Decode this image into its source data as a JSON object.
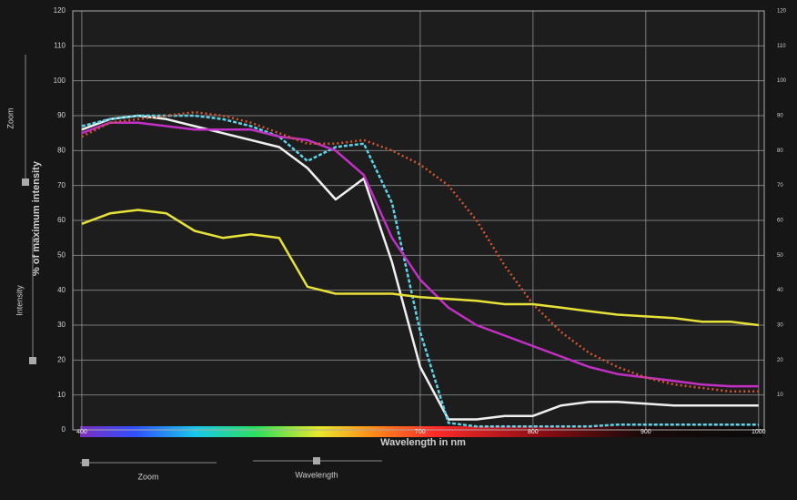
{
  "chart_data": {
    "type": "line",
    "y_label": "% of maximum intensity",
    "x_label": "Wavelength in nm",
    "x": [
      400,
      425,
      450,
      475,
      500,
      525,
      550,
      575,
      600,
      625,
      650,
      675,
      700,
      725,
      750,
      775,
      800,
      825,
      850,
      875,
      900,
      925,
      950,
      975,
      1000
    ],
    "series": [
      {
        "color": "#f0f0f0",
        "values": [
          86,
          89,
          90,
          89,
          87,
          85,
          83,
          81,
          75,
          66,
          72,
          48,
          18,
          3,
          3,
          4,
          4,
          7,
          8,
          8,
          7.5,
          7,
          7,
          7,
          7
        ]
      },
      {
        "color": "#5fd3e8",
        "values": [
          87,
          89,
          90,
          90,
          90,
          89,
          87,
          84,
          77,
          81,
          82,
          65,
          28,
          2,
          1,
          1,
          1,
          1,
          1,
          1.5,
          1.5,
          1.5,
          1.5,
          1.5,
          1.5
        ]
      },
      {
        "color": "#c22fc4",
        "values": [
          85,
          88,
          88,
          87,
          86,
          86,
          86,
          84,
          83,
          80,
          73,
          55,
          43,
          35,
          30,
          27,
          24,
          21,
          18,
          16,
          15,
          14,
          13,
          12.5,
          12.5
        ]
      },
      {
        "color": "#d2562e",
        "values": [
          84,
          88,
          89,
          90,
          91,
          90,
          88,
          85,
          82,
          82,
          83,
          80,
          76,
          70,
          60,
          47,
          36,
          28,
          22,
          18,
          15,
          13,
          12,
          11,
          11
        ]
      },
      {
        "color": "#e6e23a",
        "values": [
          59,
          62,
          63,
          62,
          57,
          55,
          56,
          55,
          41,
          39,
          39,
          39,
          38,
          37.5,
          37,
          36,
          36,
          35,
          34,
          33,
          32.5,
          32,
          31,
          31,
          30
        ]
      }
    ],
    "xlim": [
      392,
      1005
    ],
    "xticks": [
      400,
      700,
      800,
      900,
      1000
    ],
    "ylim": [
      0,
      120
    ],
    "yticks": [
      0,
      10,
      20,
      30,
      40,
      50,
      60,
      70,
      80,
      90,
      100,
      110,
      120
    ],
    "y2lim": [
      0,
      120
    ],
    "y2ticks": [
      10,
      20,
      30,
      40,
      50,
      60,
      70,
      80,
      90,
      100,
      110,
      120
    ],
    "grid": true
  },
  "controls": {
    "left": [
      "Zoom",
      "Intensity"
    ],
    "bottom": [
      "Zoom",
      "Wavelength"
    ]
  }
}
